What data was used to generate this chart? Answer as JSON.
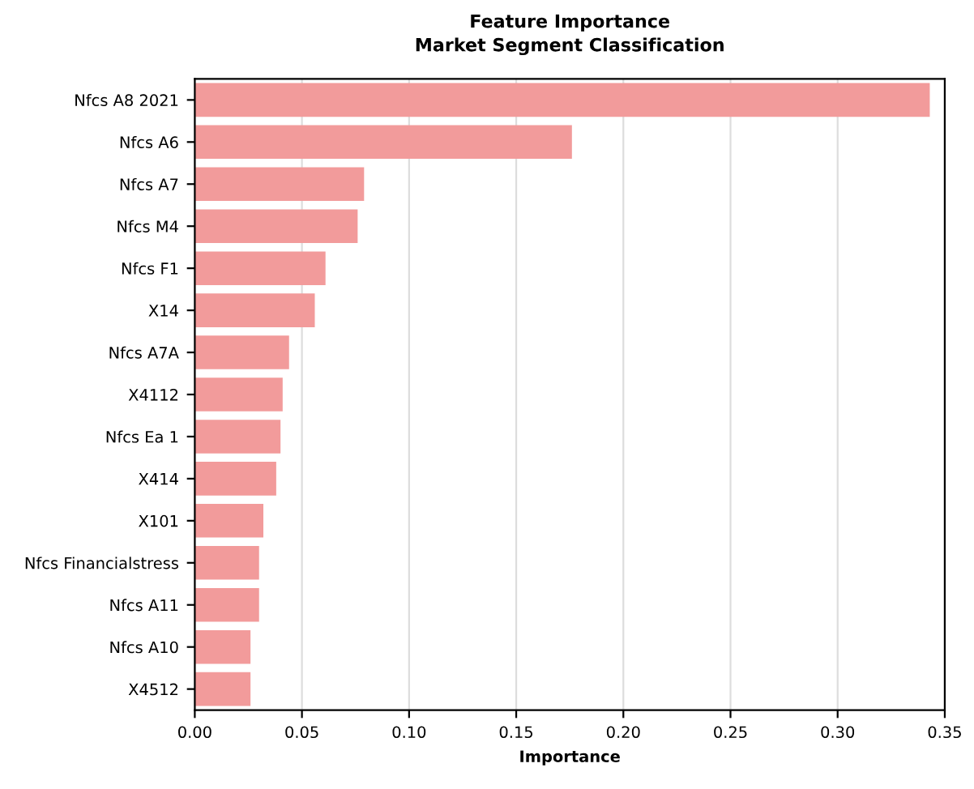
{
  "chart_data": {
    "type": "bar",
    "orientation": "horizontal",
    "title": "Feature Importance",
    "subtitle": "Market Segment Classification",
    "xlabel": "Importance",
    "categories": [
      "Nfcs A8 2021",
      "Nfcs A6",
      "Nfcs A7",
      "Nfcs M4",
      "Nfcs F1",
      "X14",
      "Nfcs A7A",
      "X4112",
      "Nfcs Ea 1",
      "X414",
      "X101",
      "Nfcs Financialstress",
      "Nfcs A11",
      "Nfcs A10",
      "X4512"
    ],
    "values": [
      0.343,
      0.176,
      0.079,
      0.076,
      0.061,
      0.056,
      0.044,
      0.041,
      0.04,
      0.038,
      0.032,
      0.03,
      0.03,
      0.026,
      0.026
    ],
    "color": "#f29b9b",
    "xlim": [
      0,
      0.35
    ],
    "xticks": [
      {
        "value": 0,
        "label": "0.00"
      },
      {
        "value": 0.05,
        "label": "0.05"
      },
      {
        "value": 0.1,
        "label": "0.10"
      },
      {
        "value": 0.15,
        "label": "0.15"
      },
      {
        "value": 0.2,
        "label": "0.20"
      },
      {
        "value": 0.25,
        "label": "0.25"
      },
      {
        "value": 0.3,
        "label": "0.30"
      },
      {
        "value": 0.35,
        "label": "0.35"
      }
    ],
    "grid": "x"
  }
}
